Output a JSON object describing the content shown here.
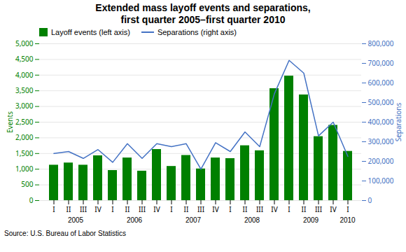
{
  "chart_data": {
    "type": "bar",
    "title": "Extended mass layoff events and separations,\nfirst quarter 2005–first quarter 2010",
    "source": "Source: U.S. Bureau of Labor Statistics",
    "categories": [
      "I",
      "II",
      "III",
      "IV",
      "I",
      "II",
      "III",
      "IV",
      "I",
      "II",
      "III",
      "IV",
      "I",
      "II",
      "III",
      "IV",
      "I",
      "II",
      "III",
      "IV",
      "I"
    ],
    "annotations": [
      "2005",
      "2006",
      "2007",
      "2008",
      "2009",
      "2010"
    ],
    "series": [
      {
        "name": "Layoff events (left axis)",
        "type": "bar",
        "color": "#008000",
        "values": [
          1130,
          1200,
          1130,
          1430,
          960,
          1360,
          940,
          1630,
          1090,
          1440,
          1010,
          1360,
          1340,
          1750,
          1590,
          3570,
          3970,
          3370,
          2040,
          2400,
          1570
        ]
      },
      {
        "name": "Separations (right axis)",
        "type": "line",
        "color": "#4472C4",
        "axis": "y2",
        "values": [
          240000,
          250000,
          215000,
          260000,
          195000,
          290000,
          215000,
          290000,
          275000,
          290000,
          160000,
          295000,
          250000,
          350000,
          275000,
          545000,
          715000,
          650000,
          330000,
          400000,
          225000
        ]
      }
    ],
    "ylabel": "Events",
    "y2label": "Separations",
    "ylim": [
      0,
      5000
    ],
    "yticks": [
      0,
      500,
      {
        "value": 1000,
        "label": "1,000"
      },
      {
        "value": 1500,
        "label": "1,500"
      },
      {
        "value": 2000,
        "label": "2,000"
      },
      {
        "value": 2500,
        "label": "2,500"
      },
      {
        "value": 3000,
        "label": "3,000"
      },
      {
        "value": 3500,
        "label": "3,500"
      },
      {
        "value": 4000,
        "label": "4,000"
      },
      {
        "value": 4500,
        "label": "4,500"
      },
      {
        "value": 5000,
        "label": "5,000"
      }
    ],
    "y2lim": [
      0,
      800000
    ],
    "y2ticks": [
      0,
      {
        "value": 100000,
        "label": "100,000"
      },
      {
        "value": 200000,
        "label": "200,000"
      },
      {
        "value": 300000,
        "label": "300,000"
      },
      {
        "value": 400000,
        "label": "400,000"
      },
      {
        "value": 500000,
        "label": "500,000"
      },
      {
        "value": 600000,
        "label": "600,000"
      },
      {
        "value": 700000,
        "label": "700,000"
      },
      {
        "value": 800000,
        "label": "800,000"
      }
    ],
    "grid": true,
    "legend": "upper left"
  }
}
